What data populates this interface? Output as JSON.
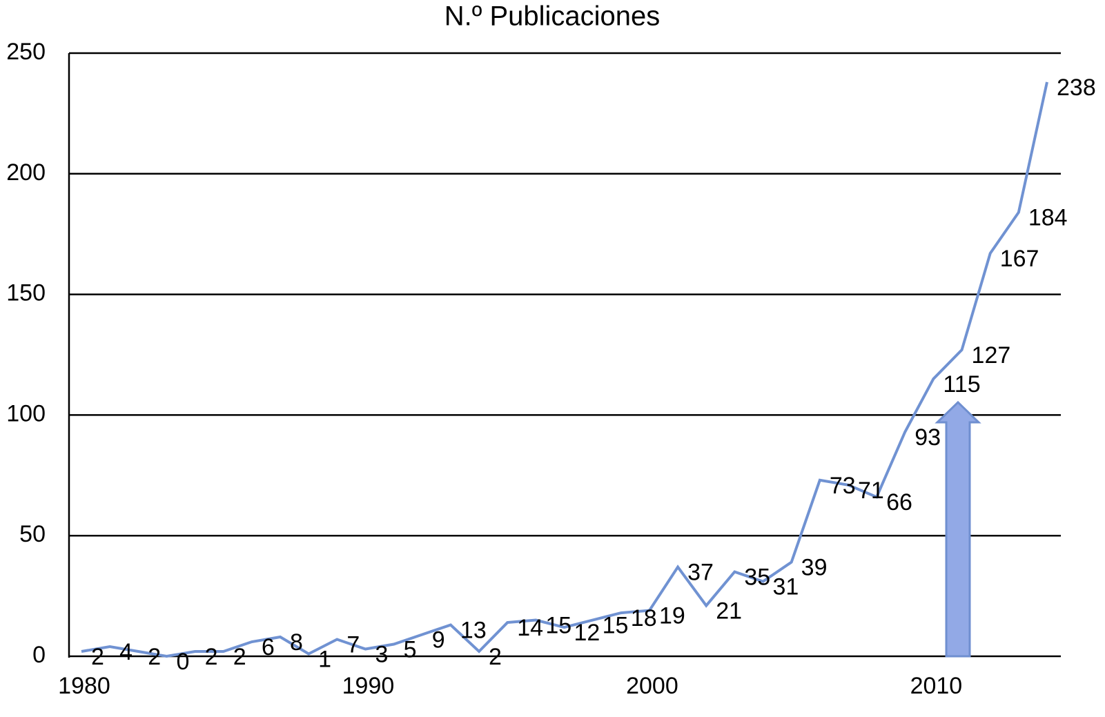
{
  "chart_data": {
    "type": "line",
    "title": "N.º Publicaciones",
    "categories": [
      "1980",
      null,
      null,
      null,
      null,
      null,
      null,
      null,
      null,
      null,
      "1990",
      null,
      null,
      null,
      null,
      null,
      null,
      null,
      null,
      null,
      "2000",
      null,
      null,
      null,
      null,
      null,
      null,
      null,
      null,
      null,
      "2010",
      null,
      null,
      null,
      null
    ],
    "values": [
      2,
      4,
      2,
      0,
      2,
      2,
      6,
      8,
      1,
      7,
      3,
      5,
      9,
      13,
      2,
      14,
      15,
      12,
      15,
      18,
      19,
      37,
      21,
      35,
      31,
      39,
      73,
      71,
      66,
      93,
      115,
      127,
      167,
      184,
      238
    ],
    "color": "#7092d2",
    "ylim": [
      0,
      250
    ],
    "yticks": [
      0,
      50,
      100,
      150,
      200,
      250
    ],
    "grid": true
  }
}
